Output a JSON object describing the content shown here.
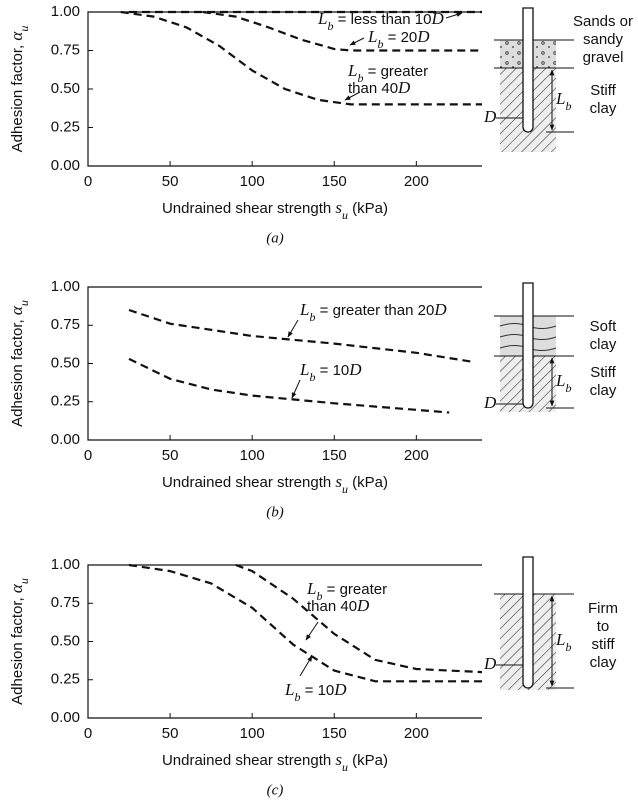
{
  "chart_data": [
    {
      "type": "line",
      "caption": "(a)",
      "x_label": "Undrained shear strength su (kPa)",
      "y_label": "Adhesion factor, αu",
      "xlim": [
        0,
        240
      ],
      "xticks": [
        0,
        50,
        100,
        150,
        200
      ],
      "ylim": [
        0,
        1
      ],
      "yticks": [
        {
          "value": 0,
          "label": "0.00"
        },
        {
          "value": 0.25,
          "label": "0.25"
        },
        {
          "value": 0.5,
          "label": "0.50"
        },
        {
          "value": 0.75,
          "label": "0.75"
        },
        {
          "value": 1,
          "label": "1.00"
        }
      ],
      "series": [
        {
          "name": "Lb = less than 10D",
          "color": "#111111",
          "x": [
            25,
            240
          ],
          "values": [
            1,
            1
          ]
        },
        {
          "name": "Lb = 20D",
          "color": "#111111",
          "x": [
            70,
            90,
            110,
            130,
            150,
            160,
            240
          ],
          "values": [
            1,
            0.97,
            0.9,
            0.82,
            0.76,
            0.75,
            0.75
          ]
        },
        {
          "name": "Lb = greater than 40D",
          "color": "#111111",
          "x": [
            20,
            40,
            60,
            80,
            100,
            120,
            140,
            160,
            240
          ],
          "values": [
            1,
            0.97,
            0.9,
            0.78,
            0.62,
            0.5,
            0.43,
            0.4,
            0.4
          ]
        }
      ],
      "diagram": {
        "layers": [
          [
            "Sands or",
            "sandy",
            "gravel"
          ],
          [
            "Stiff",
            "clay"
          ]
        ],
        "pile_diameter": "D",
        "embedment": "Lb"
      }
    },
    {
      "type": "line",
      "caption": "(b)",
      "x_label": "Undrained shear strength su (kPa)",
      "y_label": "Adhesion factor, αu",
      "xlim": [
        0,
        240
      ],
      "xticks": [
        0,
        50,
        100,
        150,
        200
      ],
      "ylim": [
        0,
        1
      ],
      "yticks": [
        {
          "value": 0,
          "label": "0.00"
        },
        {
          "value": 0.25,
          "label": "0.25"
        },
        {
          "value": 0.5,
          "label": "0.50"
        },
        {
          "value": 0.75,
          "label": "0.75"
        },
        {
          "value": 1,
          "label": "1.00"
        }
      ],
      "series": [
        {
          "name": "Lb = greater than 20D",
          "color": "#111111",
          "x": [
            25,
            50,
            100,
            150,
            200,
            235
          ],
          "values": [
            0.85,
            0.76,
            0.68,
            0.63,
            0.57,
            0.51
          ]
        },
        {
          "name": "Lb = 10D",
          "color": "#111111",
          "x": [
            25,
            50,
            75,
            100,
            150,
            220
          ],
          "values": [
            0.53,
            0.4,
            0.33,
            0.29,
            0.24,
            0.18
          ]
        }
      ],
      "diagram": {
        "layers": [
          [
            "Soft",
            "clay"
          ],
          [
            "Stiff",
            "clay"
          ]
        ],
        "pile_diameter": "D",
        "embedment": "Lb"
      }
    },
    {
      "type": "line",
      "caption": "(c)",
      "x_label": "Undrained shear strength su (kPa)",
      "y_label": "Adhesion factor, αu",
      "xlim": [
        0,
        240
      ],
      "xticks": [
        0,
        50,
        100,
        150,
        200
      ],
      "ylim": [
        0,
        1
      ],
      "yticks": [
        {
          "value": 0,
          "label": "0.00"
        },
        {
          "value": 0.25,
          "label": "0.25"
        },
        {
          "value": 0.5,
          "label": "0.50"
        },
        {
          "value": 0.75,
          "label": "0.75"
        },
        {
          "value": 1,
          "label": "1.00"
        }
      ],
      "series": [
        {
          "name": "Lb = greater than 40D",
          "color": "#111111",
          "x": [
            90,
            100,
            125,
            150,
            175,
            200,
            240
          ],
          "values": [
            1,
            0.96,
            0.78,
            0.55,
            0.38,
            0.32,
            0.3
          ]
        },
        {
          "name": "Lb = 10D",
          "color": "#111111",
          "x": [
            25,
            50,
            75,
            100,
            125,
            150,
            175,
            240
          ],
          "values": [
            1,
            0.96,
            0.88,
            0.72,
            0.48,
            0.31,
            0.24,
            0.24
          ]
        }
      ],
      "diagram": {
        "layers": [
          [
            "Firm",
            "to",
            "stiff",
            "clay"
          ]
        ],
        "pile_diameter": "D",
        "embedment": "Lb"
      }
    }
  ]
}
